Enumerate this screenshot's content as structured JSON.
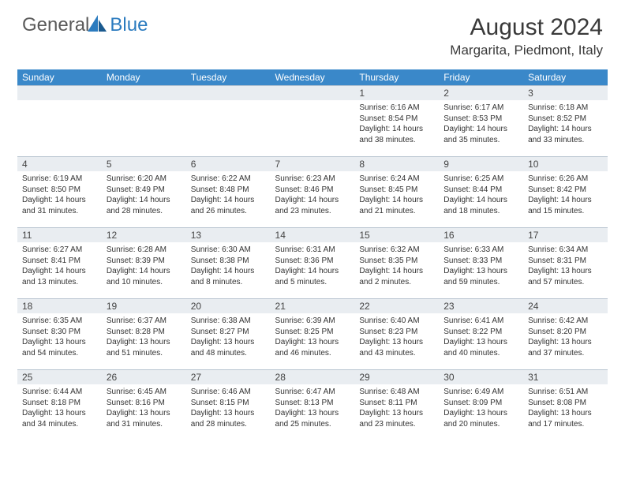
{
  "logo": {
    "word1": "General",
    "word2": "Blue"
  },
  "title": "August 2024",
  "location": "Margarita, Piedmont, Italy",
  "colors": {
    "header_bg": "#3a88c9",
    "header_text": "#ffffff",
    "daynum_bg": "#e9edf1",
    "border": "#b8c4d0",
    "logo_gray": "#5a5a5a",
    "logo_blue": "#2b7bbf"
  },
  "weekdays": [
    "Sunday",
    "Monday",
    "Tuesday",
    "Wednesday",
    "Thursday",
    "Friday",
    "Saturday"
  ],
  "weeks": [
    [
      {
        "n": "",
        "lines": []
      },
      {
        "n": "",
        "lines": []
      },
      {
        "n": "",
        "lines": []
      },
      {
        "n": "",
        "lines": []
      },
      {
        "n": "1",
        "lines": [
          "Sunrise: 6:16 AM",
          "Sunset: 8:54 PM",
          "Daylight: 14 hours and 38 minutes."
        ]
      },
      {
        "n": "2",
        "lines": [
          "Sunrise: 6:17 AM",
          "Sunset: 8:53 PM",
          "Daylight: 14 hours and 35 minutes."
        ]
      },
      {
        "n": "3",
        "lines": [
          "Sunrise: 6:18 AM",
          "Sunset: 8:52 PM",
          "Daylight: 14 hours and 33 minutes."
        ]
      }
    ],
    [
      {
        "n": "4",
        "lines": [
          "Sunrise: 6:19 AM",
          "Sunset: 8:50 PM",
          "Daylight: 14 hours and 31 minutes."
        ]
      },
      {
        "n": "5",
        "lines": [
          "Sunrise: 6:20 AM",
          "Sunset: 8:49 PM",
          "Daylight: 14 hours and 28 minutes."
        ]
      },
      {
        "n": "6",
        "lines": [
          "Sunrise: 6:22 AM",
          "Sunset: 8:48 PM",
          "Daylight: 14 hours and 26 minutes."
        ]
      },
      {
        "n": "7",
        "lines": [
          "Sunrise: 6:23 AM",
          "Sunset: 8:46 PM",
          "Daylight: 14 hours and 23 minutes."
        ]
      },
      {
        "n": "8",
        "lines": [
          "Sunrise: 6:24 AM",
          "Sunset: 8:45 PM",
          "Daylight: 14 hours and 21 minutes."
        ]
      },
      {
        "n": "9",
        "lines": [
          "Sunrise: 6:25 AM",
          "Sunset: 8:44 PM",
          "Daylight: 14 hours and 18 minutes."
        ]
      },
      {
        "n": "10",
        "lines": [
          "Sunrise: 6:26 AM",
          "Sunset: 8:42 PM",
          "Daylight: 14 hours and 15 minutes."
        ]
      }
    ],
    [
      {
        "n": "11",
        "lines": [
          "Sunrise: 6:27 AM",
          "Sunset: 8:41 PM",
          "Daylight: 14 hours and 13 minutes."
        ]
      },
      {
        "n": "12",
        "lines": [
          "Sunrise: 6:28 AM",
          "Sunset: 8:39 PM",
          "Daylight: 14 hours and 10 minutes."
        ]
      },
      {
        "n": "13",
        "lines": [
          "Sunrise: 6:30 AM",
          "Sunset: 8:38 PM",
          "Daylight: 14 hours and 8 minutes."
        ]
      },
      {
        "n": "14",
        "lines": [
          "Sunrise: 6:31 AM",
          "Sunset: 8:36 PM",
          "Daylight: 14 hours and 5 minutes."
        ]
      },
      {
        "n": "15",
        "lines": [
          "Sunrise: 6:32 AM",
          "Sunset: 8:35 PM",
          "Daylight: 14 hours and 2 minutes."
        ]
      },
      {
        "n": "16",
        "lines": [
          "Sunrise: 6:33 AM",
          "Sunset: 8:33 PM",
          "Daylight: 13 hours and 59 minutes."
        ]
      },
      {
        "n": "17",
        "lines": [
          "Sunrise: 6:34 AM",
          "Sunset: 8:31 PM",
          "Daylight: 13 hours and 57 minutes."
        ]
      }
    ],
    [
      {
        "n": "18",
        "lines": [
          "Sunrise: 6:35 AM",
          "Sunset: 8:30 PM",
          "Daylight: 13 hours and 54 minutes."
        ]
      },
      {
        "n": "19",
        "lines": [
          "Sunrise: 6:37 AM",
          "Sunset: 8:28 PM",
          "Daylight: 13 hours and 51 minutes."
        ]
      },
      {
        "n": "20",
        "lines": [
          "Sunrise: 6:38 AM",
          "Sunset: 8:27 PM",
          "Daylight: 13 hours and 48 minutes."
        ]
      },
      {
        "n": "21",
        "lines": [
          "Sunrise: 6:39 AM",
          "Sunset: 8:25 PM",
          "Daylight: 13 hours and 46 minutes."
        ]
      },
      {
        "n": "22",
        "lines": [
          "Sunrise: 6:40 AM",
          "Sunset: 8:23 PM",
          "Daylight: 13 hours and 43 minutes."
        ]
      },
      {
        "n": "23",
        "lines": [
          "Sunrise: 6:41 AM",
          "Sunset: 8:22 PM",
          "Daylight: 13 hours and 40 minutes."
        ]
      },
      {
        "n": "24",
        "lines": [
          "Sunrise: 6:42 AM",
          "Sunset: 8:20 PM",
          "Daylight: 13 hours and 37 minutes."
        ]
      }
    ],
    [
      {
        "n": "25",
        "lines": [
          "Sunrise: 6:44 AM",
          "Sunset: 8:18 PM",
          "Daylight: 13 hours and 34 minutes."
        ]
      },
      {
        "n": "26",
        "lines": [
          "Sunrise: 6:45 AM",
          "Sunset: 8:16 PM",
          "Daylight: 13 hours and 31 minutes."
        ]
      },
      {
        "n": "27",
        "lines": [
          "Sunrise: 6:46 AM",
          "Sunset: 8:15 PM",
          "Daylight: 13 hours and 28 minutes."
        ]
      },
      {
        "n": "28",
        "lines": [
          "Sunrise: 6:47 AM",
          "Sunset: 8:13 PM",
          "Daylight: 13 hours and 25 minutes."
        ]
      },
      {
        "n": "29",
        "lines": [
          "Sunrise: 6:48 AM",
          "Sunset: 8:11 PM",
          "Daylight: 13 hours and 23 minutes."
        ]
      },
      {
        "n": "30",
        "lines": [
          "Sunrise: 6:49 AM",
          "Sunset: 8:09 PM",
          "Daylight: 13 hours and 20 minutes."
        ]
      },
      {
        "n": "31",
        "lines": [
          "Sunrise: 6:51 AM",
          "Sunset: 8:08 PM",
          "Daylight: 13 hours and 17 minutes."
        ]
      }
    ]
  ]
}
